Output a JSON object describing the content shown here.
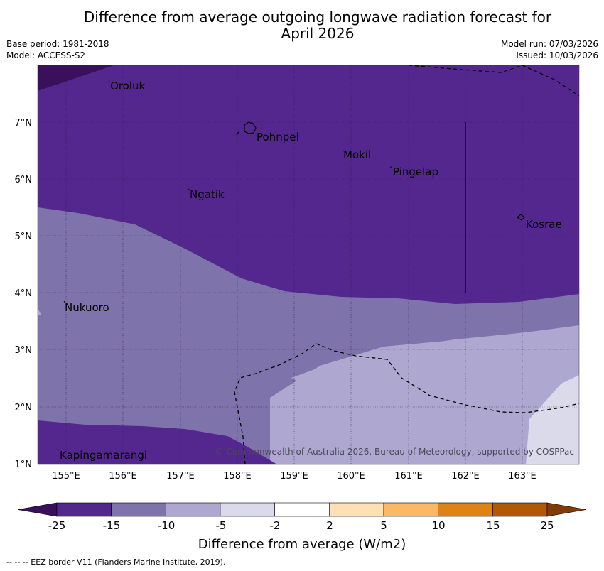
{
  "header": {
    "title_line1": "Difference from average outgoing longwave radiation forecast for",
    "title_line2": "April 2026",
    "base_period": "Base period: 1981-2018",
    "model": "Model: ACCESS-S2",
    "model_run": "Model run: 07/03/2026",
    "issued": "Issued: 10/03/2026"
  },
  "map": {
    "latitude_labels": [
      "1°N",
      "2°N",
      "3°N",
      "4°N",
      "5°N",
      "6°N",
      "7°N"
    ],
    "longitude_labels": [
      "155°E",
      "156°E",
      "157°E",
      "158°E",
      "159°E",
      "160°E",
      "161°E",
      "162°E",
      "163°E"
    ],
    "places": [
      "Oroluk",
      "Pohnpei",
      "Mokil",
      "Pingelap",
      "Ngatik",
      "Kosrae",
      "Nukuoro",
      "Kapingamarangi"
    ],
    "copyright": "© Commonwealth of Australia 2026, Bureau of Meteorology, supported by COSPPac"
  },
  "colorbar": {
    "ticks": [
      "-25",
      "-15",
      "-10",
      "-5",
      "-2",
      "2",
      "5",
      "10",
      "15",
      "25"
    ],
    "colors": [
      "#3a0f5c",
      "#54278f",
      "#7f73ab",
      "#aea8d0",
      "#dadaeb",
      "#ffffff",
      "#fee0b6",
      "#fdb863",
      "#e08214",
      "#b35806",
      "#7f3b08"
    ],
    "label": "Difference from average (W/m2)"
  },
  "footer": {
    "eez_legend": "--  --  -- EEZ border V11 (Flanders Marine Institute, 2019)."
  }
}
